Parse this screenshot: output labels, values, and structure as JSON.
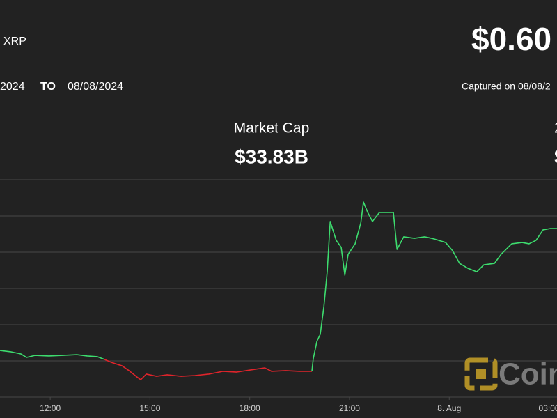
{
  "chart_data": {
    "type": "line",
    "asset": "XRP",
    "price": "$0.60",
    "range_start": "2024",
    "range_to": "TO",
    "range_end": "08/08/2024",
    "captured": "Captured on 08/08/2",
    "stats": [
      {
        "label": "Market Cap",
        "value": "$33.83B"
      },
      {
        "label": "2",
        "value": "$"
      }
    ],
    "watermark": "Coin",
    "x": [
      10.49,
      10.81,
      11.12,
      11.29,
      11.54,
      11.96,
      12.38,
      12.8,
      13.11,
      13.42,
      13.63,
      13.84,
      14.16,
      14.37,
      14.58,
      14.72,
      14.89,
      15.2,
      15.52,
      15.94,
      16.35,
      16.77,
      17.19,
      17.61,
      18.03,
      18.45,
      18.66,
      19.08,
      19.49,
      19.87,
      19.91,
      20.02,
      20.12,
      20.23,
      20.33,
      20.42,
      20.5,
      20.6,
      20.75,
      20.86,
      20.96,
      21.17,
      21.34,
      21.42,
      21.55,
      21.69,
      21.9,
      22.11,
      22.32,
      22.43,
      22.63,
      22.95,
      23.26,
      23.47,
      23.68,
      23.89,
      24.1,
      24.31,
      24.56,
      24.83,
      25.04,
      25.36,
      25.56,
      25.88,
      26.19,
      26.4,
      26.61,
      26.82,
      27.03,
      27.24
    ],
    "series": [
      {
        "color": "#3ddc6e",
        "values": [
          0.5172,
          0.5163,
          0.5148,
          0.5124,
          0.5138,
          0.5134,
          0.5138,
          0.5143,
          0.5134,
          0.5129,
          0.511,
          null,
          null,
          null,
          null,
          null,
          null,
          null,
          null,
          null,
          null,
          null,
          null,
          null,
          null,
          null,
          null,
          null,
          null,
          0.5028,
          0.5114,
          0.5235,
          0.5283,
          0.5475,
          0.5715,
          0.6062,
          0.6004,
          0.5932,
          0.5884,
          0.5691,
          0.5836,
          0.5908,
          0.6052,
          0.6196,
          0.6124,
          0.6062,
          0.6124,
          0.6124,
          0.6124,
          0.5869,
          0.5956,
          0.5946,
          0.5956,
          0.5946,
          0.5932,
          0.5917,
          0.586,
          0.5773,
          0.5739,
          0.5715,
          0.5763,
          0.5773,
          0.5836,
          0.5908,
          0.5917,
          0.5908,
          0.5932,
          0.6004,
          0.6013,
          0.6013
        ]
      },
      {
        "color": "#e0242b",
        "values": [
          null,
          null,
          null,
          null,
          null,
          null,
          null,
          null,
          null,
          null,
          0.511,
          0.509,
          0.5066,
          0.5033,
          0.4994,
          0.497,
          0.5009,
          0.4994,
          0.5004,
          0.4994,
          0.4999,
          0.5009,
          0.5028,
          0.5023,
          0.5038,
          0.5052,
          0.5028,
          0.5033,
          0.5028,
          0.5028,
          null,
          null,
          null,
          null,
          null,
          null,
          null,
          null,
          null,
          null,
          null,
          null,
          null,
          null,
          null,
          null,
          null,
          null,
          null,
          null,
          null,
          null,
          null,
          null,
          null,
          null,
          null,
          null,
          null,
          null,
          null,
          null,
          null,
          null,
          null,
          null,
          null,
          null,
          null,
          null
        ]
      }
    ],
    "xlim": [
      10.49,
      27.24
    ],
    "xticks": [
      {
        "value": 12,
        "label": "12:00"
      },
      {
        "value": 15,
        "label": "15:00"
      },
      {
        "value": 18,
        "label": "18:00"
      },
      {
        "value": 21,
        "label": "21:00"
      },
      {
        "value": 24,
        "label": "8. Aug"
      },
      {
        "value": 27,
        "label": "03:00"
      }
    ],
    "ylim": [
      0.485,
      0.635
    ],
    "yticks": [
      0.485,
      0.51,
      0.535,
      0.56,
      0.585,
      0.61,
      0.635
    ],
    "grid": true
  }
}
